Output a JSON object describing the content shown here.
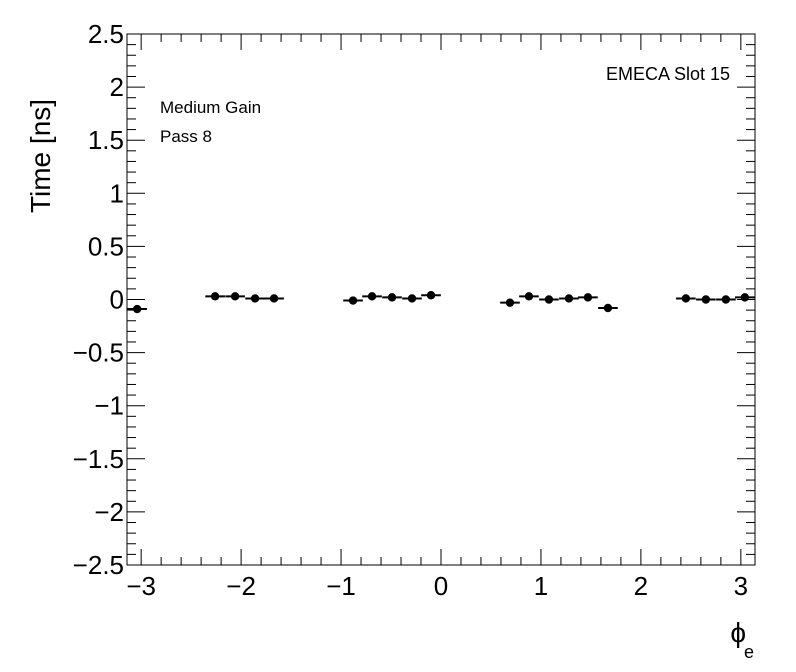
{
  "chart_data": {
    "type": "scatter",
    "title": "",
    "xlabel": "ϕ",
    "xlabel_sub": "e",
    "ylabel": "Time [ns]",
    "xlim": [
      -3.1416,
      3.1416
    ],
    "ylim": [
      -2.5,
      2.5
    ],
    "x_major_ticks": [
      -3,
      -2,
      -1,
      0,
      1,
      2,
      3
    ],
    "x_tick_labels": [
      "−3",
      "−2",
      "−1",
      "0",
      "1",
      "2",
      "3"
    ],
    "y_major_ticks": [
      -2.5,
      -2,
      -1.5,
      -1,
      -0.5,
      0,
      0.5,
      1,
      1.5,
      2,
      2.5
    ],
    "y_tick_labels": [
      "−2.5",
      "−2",
      "−1.5",
      "−1",
      "−0.5",
      "0",
      "0.5",
      "1",
      "1.5",
      "2",
      "2.5"
    ],
    "bin_half_width": 0.0982,
    "marker_color": "#000000",
    "annotations": {
      "slot": "EMECA Slot 15",
      "gain": "Medium Gain",
      "pass": "Pass 8"
    },
    "points": [
      {
        "x": -3.04,
        "y": -0.09
      },
      {
        "x": -2.26,
        "y": 0.03
      },
      {
        "x": -2.06,
        "y": 0.03
      },
      {
        "x": -1.86,
        "y": 0.01
      },
      {
        "x": -1.67,
        "y": 0.01
      },
      {
        "x": -0.88,
        "y": -0.01
      },
      {
        "x": -0.69,
        "y": 0.03
      },
      {
        "x": -0.49,
        "y": 0.02
      },
      {
        "x": -0.29,
        "y": 0.01
      },
      {
        "x": -0.1,
        "y": 0.04
      },
      {
        "x": 0.69,
        "y": -0.03
      },
      {
        "x": 0.88,
        "y": 0.03
      },
      {
        "x": 1.08,
        "y": 0.0
      },
      {
        "x": 1.28,
        "y": 0.01
      },
      {
        "x": 1.47,
        "y": 0.02
      },
      {
        "x": 1.67,
        "y": -0.08
      },
      {
        "x": 2.45,
        "y": 0.01
      },
      {
        "x": 2.65,
        "y": 0.0
      },
      {
        "x": 2.85,
        "y": 0.0
      },
      {
        "x": 3.04,
        "y": 0.02
      }
    ]
  }
}
